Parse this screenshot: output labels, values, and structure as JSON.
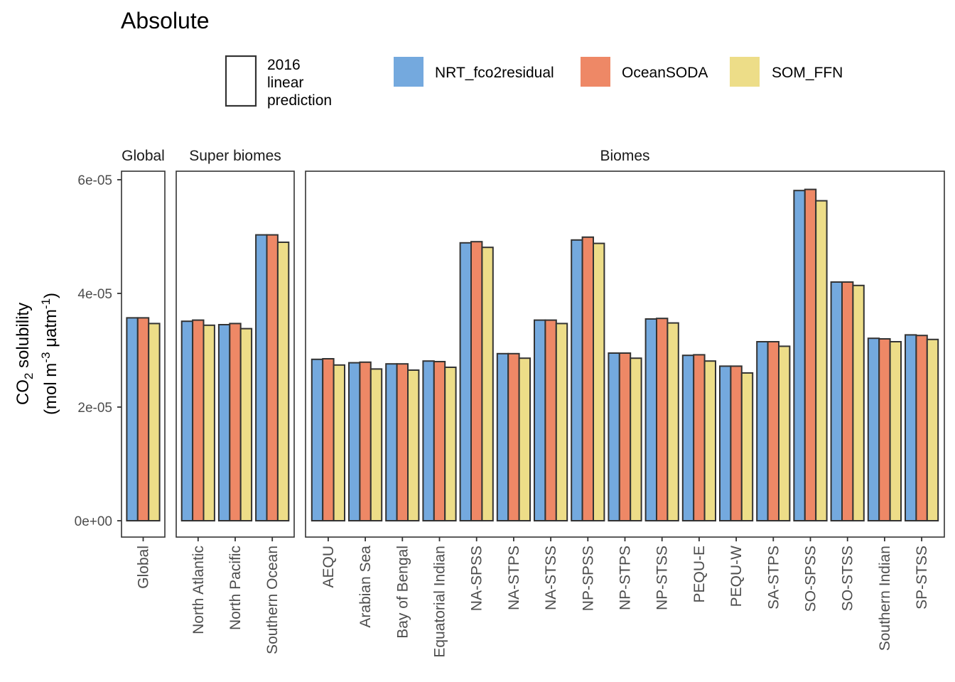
{
  "chart_data": {
    "type": "bar",
    "title": "Absolute",
    "ylabel_line1_prefix": "CO",
    "ylabel_line1_sub": "2",
    "ylabel_line1_suffix": " solubility",
    "ylabel_line2_a": "(mol m",
    "ylabel_line2_sup1": "-3",
    "ylabel_line2_b": " μatm",
    "ylabel_line2_sup2": "-1",
    "ylabel_line2_c": ")",
    "ylim": [
      0,
      6.5e-05
    ],
    "yticks": [
      {
        "value": 0,
        "label": "0e+00"
      },
      {
        "value": 2e-05,
        "label": "2e-05"
      },
      {
        "value": 4e-05,
        "label": "4e-05"
      },
      {
        "value": 6e-05,
        "label": "6e-05"
      }
    ],
    "legend": {
      "outline_label": [
        "2016",
        "linear",
        "prediction"
      ],
      "series": [
        {
          "name": "NRT_fco2residual",
          "color": "#74A9DE"
        },
        {
          "name": "OceanSODA",
          "color": "#EE8866"
        },
        {
          "name": "SOM_FFN",
          "color": "#EDDD88"
        }
      ]
    },
    "panels": [
      {
        "label": "Global",
        "categories": [
          "Global"
        ],
        "series": [
          {
            "name": "NRT_fco2residual",
            "values": [
              3.57e-05
            ]
          },
          {
            "name": "OceanSODA",
            "values": [
              3.57e-05
            ]
          },
          {
            "name": "SOM_FFN",
            "values": [
              3.47e-05
            ]
          }
        ]
      },
      {
        "label": "Super biomes",
        "categories": [
          "North Atlantic",
          "North Pacific",
          "Southern Ocean"
        ],
        "series": [
          {
            "name": "NRT_fco2residual",
            "values": [
              3.51e-05,
              3.45e-05,
              5.03e-05
            ]
          },
          {
            "name": "OceanSODA",
            "values": [
              3.53e-05,
              3.47e-05,
              5.03e-05
            ]
          },
          {
            "name": "SOM_FFN",
            "values": [
              3.44e-05,
              3.38e-05,
              4.9e-05
            ]
          }
        ]
      },
      {
        "label": "Biomes",
        "categories": [
          "AEQU",
          "Arabian Sea",
          "Bay of Bengal",
          "Equatorial Indian",
          "NA-SPSS",
          "NA-STPS",
          "NA-STSS",
          "NP-SPSS",
          "NP-STPS",
          "NP-STSS",
          "PEQU-E",
          "PEQU-W",
          "SA-STPS",
          "SO-SPSS",
          "SO-STSS",
          "Southern Indian",
          "SP-STSS"
        ],
        "series": [
          {
            "name": "NRT_fco2residual",
            "values": [
              2.84e-05,
              2.78e-05,
              2.76e-05,
              2.81e-05,
              4.89e-05,
              2.94e-05,
              3.53e-05,
              4.94e-05,
              2.95e-05,
              3.55e-05,
              2.91e-05,
              2.72e-05,
              3.15e-05,
              5.81e-05,
              4.2e-05,
              3.21e-05,
              3.27e-05
            ]
          },
          {
            "name": "OceanSODA",
            "values": [
              2.85e-05,
              2.79e-05,
              2.76e-05,
              2.8e-05,
              4.91e-05,
              2.94e-05,
              3.53e-05,
              4.99e-05,
              2.95e-05,
              3.56e-05,
              2.92e-05,
              2.72e-05,
              3.15e-05,
              5.83e-05,
              4.2e-05,
              3.2e-05,
              3.26e-05
            ]
          },
          {
            "name": "SOM_FFN",
            "values": [
              2.74e-05,
              2.67e-05,
              2.65e-05,
              2.7e-05,
              4.81e-05,
              2.86e-05,
              3.47e-05,
              4.88e-05,
              2.86e-05,
              3.48e-05,
              2.81e-05,
              2.6e-05,
              3.07e-05,
              5.63e-05,
              4.14e-05,
              3.15e-05,
              3.19e-05
            ]
          }
        ]
      }
    ]
  }
}
